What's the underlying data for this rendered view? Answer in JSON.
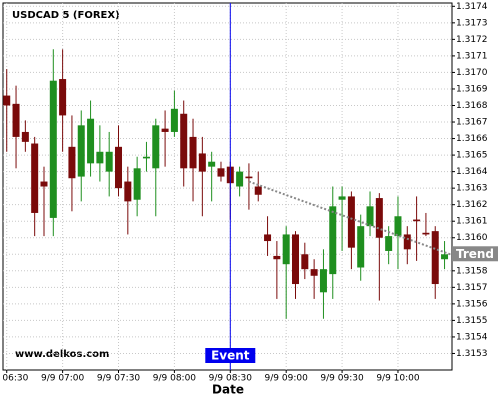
{
  "chart_data": {
    "type": "candlestick",
    "title": "USDCAD 5 (FOREX)",
    "x_label": "Date",
    "watermark": "www.delkos.com",
    "x": [
      "9/9 06:30",
      "9/9 06:35",
      "9/9 06:40",
      "9/9 06:45",
      "9/9 06:50",
      "9/9 06:55",
      "9/9 07:00",
      "9/9 07:05",
      "9/9 07:10",
      "9/9 07:15",
      "9/9 07:20",
      "9/9 07:25",
      "9/9 07:30",
      "9/9 07:35",
      "9/9 07:40",
      "9/9 07:45",
      "9/9 07:50",
      "9/9 07:55",
      "9/9 08:00",
      "9/9 08:05",
      "9/9 08:10",
      "9/9 08:15",
      "9/9 08:20",
      "9/9 08:25",
      "9/9 08:30",
      "9/9 08:35",
      "9/9 08:40",
      "9/9 08:45",
      "9/9 08:50",
      "9/9 08:55",
      "9/9 09:00",
      "9/9 09:05",
      "9/9 09:10",
      "9/9 09:15",
      "9/9 09:20",
      "9/9 09:25",
      "9/9 09:30",
      "9/9 09:35",
      "9/9 09:40",
      "9/9 09:45",
      "9/9 09:50",
      "9/9 09:55",
      "9/9 10:00",
      "9/9 10:05",
      "9/9 10:10",
      "9/9 10:15",
      "9/9 10:20",
      "9/9 10:25"
    ],
    "open": [
      1.31686,
      1.31681,
      1.31664,
      1.31657,
      1.31634,
      1.31612,
      1.31696,
      1.31655,
      1.31637,
      1.31645,
      1.31645,
      1.3164,
      1.31655,
      1.31634,
      1.31623,
      1.31648,
      1.31642,
      1.31666,
      1.31664,
      1.31675,
      1.31661,
      1.31651,
      1.31643,
      1.31642,
      1.31643,
      1.31631,
      1.31637,
      1.31631,
      1.31602,
      1.31589,
      1.31584,
      1.31602,
      1.3159,
      1.31581,
      1.31567,
      1.31578,
      1.31623,
      1.31625,
      1.31582,
      1.31607,
      1.31624,
      1.31592,
      1.31601,
      1.31602,
      1.31611,
      1.31603,
      1.31604,
      1.31587
    ],
    "high": [
      1.31702,
      1.31692,
      1.31671,
      1.31661,
      1.31643,
      1.31714,
      1.31714,
      1.31674,
      1.31677,
      1.31683,
      1.31668,
      1.31664,
      1.31668,
      1.31643,
      1.31649,
      1.31658,
      1.31672,
      1.31677,
      1.31689,
      1.31683,
      1.31672,
      1.31661,
      1.31652,
      1.31646,
      1.31646,
      1.31643,
      1.31645,
      1.3164,
      1.31613,
      1.31598,
      1.31607,
      1.31604,
      1.31597,
      1.31587,
      1.31593,
      1.31631,
      1.31631,
      1.31628,
      1.31614,
      1.31628,
      1.31627,
      1.31607,
      1.31625,
      1.31607,
      1.31625,
      1.31615,
      1.31607,
      1.31598
    ],
    "low": [
      1.31652,
      1.31642,
      1.31652,
      1.31601,
      1.31601,
      1.31601,
      1.31652,
      1.31616,
      1.31622,
      1.31637,
      1.31634,
      1.31625,
      1.31625,
      1.31602,
      1.31613,
      1.3164,
      1.31613,
      1.31643,
      1.31661,
      1.31631,
      1.31622,
      1.31613,
      1.31622,
      1.31634,
      1.31611,
      1.31625,
      1.31617,
      1.31622,
      1.31589,
      1.31563,
      1.31551,
      1.31563,
      1.31575,
      1.31563,
      1.31551,
      1.31563,
      1.31592,
      1.31581,
      1.31574,
      1.31601,
      1.31562,
      1.31584,
      1.31581,
      1.31584,
      1.31586,
      1.31601,
      1.31563,
      1.31581
    ],
    "close": [
      1.3168,
      1.31661,
      1.31658,
      1.31615,
      1.31631,
      1.31695,
      1.31674,
      1.31636,
      1.31668,
      1.31672,
      1.31652,
      1.31652,
      1.3163,
      1.31622,
      1.31642,
      1.31649,
      1.31668,
      1.31664,
      1.31678,
      1.31642,
      1.31642,
      1.3164,
      1.31646,
      1.31637,
      1.31633,
      1.3164,
      1.31636,
      1.31626,
      1.31598,
      1.31587,
      1.31602,
      1.31572,
      1.31581,
      1.31577,
      1.31581,
      1.31619,
      1.31625,
      1.31594,
      1.31607,
      1.31619,
      1.316,
      1.31601,
      1.31613,
      1.31593,
      1.3161,
      1.31602,
      1.31572,
      1.3159
    ],
    "up_color": "#1f8f1f",
    "down_color": "#7a0a0a",
    "event": {
      "label": "Event",
      "x": "9/9 08:30",
      "color": "#0000ee"
    },
    "trend": {
      "label": "Trend",
      "x": [
        "9/9 08:40",
        "9/9 10:28"
      ],
      "values": [
        1.31634,
        1.3159
      ],
      "color": "#888888"
    },
    "xlim": [
      "9/9 06:28",
      "9/9 10:29"
    ],
    "xticks": [
      "9/9 06:30",
      "9/9 07:00",
      "9/9 07:30",
      "9/9 08:00",
      "9/9 08:30",
      "9/9 09:00",
      "9/9 09:30",
      "9/9 10:00"
    ],
    "ylim": [
      1.3152,
      1.31742
    ],
    "yticks": [
      1.3153,
      1.3154,
      1.3155,
      1.3156,
      1.3157,
      1.3158,
      1.3159,
      {
        "value": 1.316,
        "label": "1.3160"
      },
      1.3161,
      1.3162,
      1.3163,
      1.3164,
      1.3165,
      1.3166,
      1.3167,
      1.3168,
      1.3169,
      {
        "value": 1.317,
        "label": "1.3170"
      },
      1.3171,
      1.3172,
      1.3173,
      1.3174
    ],
    "grid": true
  }
}
